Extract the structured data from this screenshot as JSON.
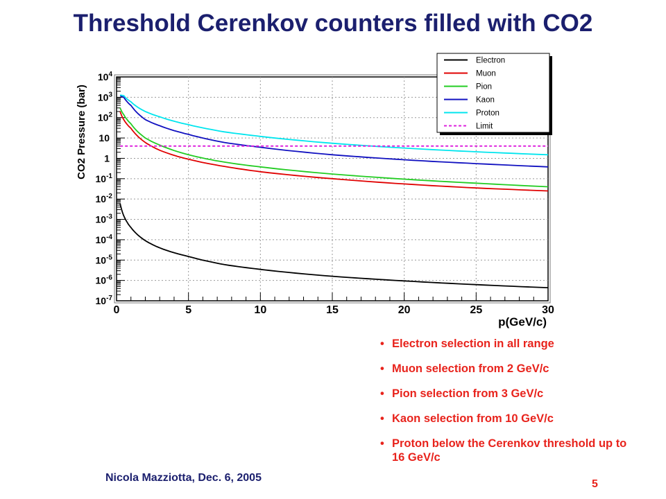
{
  "title": "Threshold Cerenkov counters filled with CO2",
  "footer": "Nicola Mazziotta, Dec. 6, 2005",
  "page_number": "5",
  "bullets": [
    "Electron selection in all range",
    "Muon selection from 2 GeV/c",
    "Pion selection from 3 GeV/c",
    "Kaon selection from  10 GeV/c",
    "Proton below the Cerenkov threshold up to 16 GeV/c"
  ],
  "chart_data": {
    "type": "line",
    "xlabel": "p(GeV/c)",
    "ylabel": "CO2 Pressure (bar)",
    "xlim": [
      0,
      30
    ],
    "ylim": [
      1e-07,
      10000
    ],
    "yscale": "log",
    "grid": true,
    "legend_position": "top-right",
    "x_ticks": [
      "0",
      "5",
      "10",
      "15",
      "20",
      "25",
      "30"
    ],
    "y_ticks": [
      {
        "base": "10",
        "exp": "4"
      },
      {
        "base": "10",
        "exp": "3"
      },
      {
        "base": "10",
        "exp": "2"
      },
      {
        "base": "10",
        "exp": ""
      },
      {
        "base": "1",
        "exp": ""
      },
      {
        "base": "10",
        "exp": "-1"
      },
      {
        "base": "10",
        "exp": "-2"
      },
      {
        "base": "10",
        "exp": "-3"
      },
      {
        "base": "10",
        "exp": "-4"
      },
      {
        "base": "10",
        "exp": "-5"
      },
      {
        "base": "10",
        "exp": "-6"
      },
      {
        "base": "10",
        "exp": "-7"
      }
    ],
    "x": [
      0.25,
      0.5,
      1,
      2,
      3,
      5,
      7.5,
      10,
      15,
      20,
      25,
      30
    ],
    "series": [
      {
        "name": "Electron",
        "color": "#000000",
        "dashed": false,
        "values": [
          0.006,
          0.0015,
          0.0004,
          9e-05,
          4e-05,
          1.5e-05,
          6e-06,
          3.5e-06,
          1.6e-06,
          9.5e-07,
          6.2e-07,
          4.4e-07
        ]
      },
      {
        "name": "Muon",
        "color": "#e00000",
        "dashed": false,
        "values": [
          200,
          80,
          30,
          6,
          2.5,
          0.9,
          0.4,
          0.22,
          0.1,
          0.055,
          0.035,
          0.025
        ]
      },
      {
        "name": "Pion",
        "color": "#22cc22",
        "dashed": false,
        "values": [
          300,
          140,
          50,
          10,
          4.5,
          1.5,
          0.65,
          0.38,
          0.17,
          0.095,
          0.06,
          0.04
        ]
      },
      {
        "name": "Kaon",
        "color": "#1010c0",
        "dashed": false,
        "values": [
          1200,
          1000,
          400,
          80,
          40,
          15,
          6,
          3.5,
          1.5,
          0.85,
          0.55,
          0.38
        ]
      },
      {
        "name": "Proton",
        "color": "#00e5ee",
        "dashed": false,
        "values": [
          1300,
          1200,
          600,
          200,
          110,
          45,
          20,
          12,
          5.5,
          3.2,
          2.1,
          1.5
        ]
      },
      {
        "name": "Limit",
        "color": "#dd22dd",
        "dashed": true,
        "values": [
          4,
          4,
          4,
          4,
          4,
          4,
          4,
          4,
          4,
          4,
          4,
          4
        ]
      }
    ]
  }
}
